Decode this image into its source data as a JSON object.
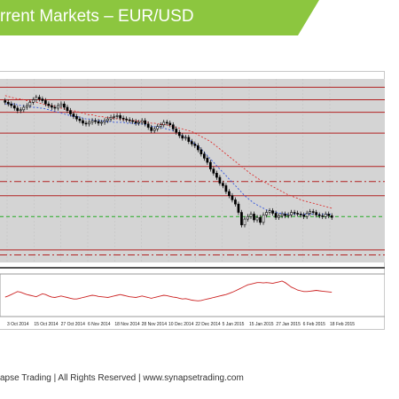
{
  "header": {
    "title": "rrent Markets – EUR/USD",
    "banner_color": "#8cc63f"
  },
  "footer": {
    "text": "apse Trading | All Rights Reserved | www.synapsetrading.com"
  },
  "colors": {
    "plot_bg": "#d4d4d4",
    "candle_body": "#ffffff",
    "candle_body_down": "#000000",
    "candle_wick": "#000000",
    "level_line": "#b22222",
    "ma_fast": "#3355dd",
    "ma_slow": "#dd3333",
    "dashed_green": "#22aa22",
    "indicator_line": "#cc2222"
  },
  "chart_data": {
    "type": "candlestick",
    "title": "",
    "xlabel": "",
    "ylabel": "",
    "grid": true,
    "x_tick_labels": [
      "3 Oct 2014",
      "15 Oct 2014",
      "27 Oct 2014",
      "6 Nov 2014",
      "18 Nov 2014",
      "28 Nov 2014",
      "10 Dec 2014",
      "22 Dec 2014",
      "5 Jan 2015",
      "15 Jan 2015",
      "27 Jan 2015",
      "6 Feb 2015",
      "18 Feb 2015"
    ],
    "horizontal_levels": [
      {
        "value": 1.29,
        "style": "solid"
      },
      {
        "value": 1.275,
        "style": "solid"
      },
      {
        "value": 1.26,
        "style": "solid"
      },
      {
        "value": 1.235,
        "style": "solid"
      },
      {
        "value": 1.195,
        "style": "solid"
      },
      {
        "value": 1.177,
        "style": "dashdot"
      },
      {
        "value": 1.16,
        "style": "solid"
      },
      {
        "value": 1.135,
        "style": "dashed-green"
      },
      {
        "value": 1.095,
        "style": "solid"
      },
      {
        "value": 1.089,
        "style": "dashdot"
      }
    ],
    "ylim": [
      1.08,
      1.3
    ],
    "closes": [
      1.272,
      1.27,
      1.268,
      1.265,
      1.262,
      1.263,
      1.266,
      1.268,
      1.272,
      1.275,
      1.278,
      1.276,
      1.274,
      1.27,
      1.268,
      1.266,
      1.265,
      1.268,
      1.27,
      1.266,
      1.262,
      1.258,
      1.255,
      1.252,
      1.25,
      1.247,
      1.246,
      1.248,
      1.25,
      1.249,
      1.247,
      1.248,
      1.25,
      1.252,
      1.254,
      1.255,
      1.256,
      1.253,
      1.252,
      1.251,
      1.25,
      1.249,
      1.247,
      1.248,
      1.25,
      1.246,
      1.242,
      1.238,
      1.24,
      1.243,
      1.245,
      1.248,
      1.247,
      1.245,
      1.24,
      1.236,
      1.232,
      1.229,
      1.23,
      1.225,
      1.222,
      1.22,
      1.215,
      1.21,
      1.205,
      1.2,
      1.192,
      1.187,
      1.182,
      1.175,
      1.172,
      1.165,
      1.16,
      1.155,
      1.15,
      1.14,
      1.125,
      1.132,
      1.135,
      1.138,
      1.131,
      1.134,
      1.128,
      1.137,
      1.14,
      1.142,
      1.139,
      1.134,
      1.136,
      1.138,
      1.136,
      1.137,
      1.14,
      1.139,
      1.138,
      1.137,
      1.135,
      1.139,
      1.141,
      1.14,
      1.137,
      1.136,
      1.135,
      1.138,
      1.136,
      1.134
    ],
    "ma_fast": [
      1.27,
      1.27,
      1.27,
      1.27,
      1.269,
      1.268,
      1.268,
      1.267,
      1.267,
      1.266,
      1.266,
      1.265,
      1.265,
      1.264,
      1.263,
      1.262,
      1.261,
      1.26,
      1.259,
      1.258,
      1.257,
      1.256,
      1.255,
      1.255,
      1.254,
      1.253,
      1.252,
      1.252,
      1.251,
      1.25,
      1.25,
      1.25,
      1.249,
      1.249,
      1.249,
      1.248,
      1.248,
      1.248,
      1.248,
      1.247,
      1.247,
      1.247,
      1.246,
      1.246,
      1.246,
      1.245,
      1.244,
      1.243,
      1.243,
      1.242,
      1.242,
      1.241,
      1.24,
      1.239,
      1.238,
      1.236,
      1.234,
      1.232,
      1.23,
      1.228,
      1.225,
      1.222,
      1.219,
      1.216,
      1.212,
      1.208,
      1.204,
      1.2,
      1.196,
      1.192,
      1.188,
      1.184,
      1.18,
      1.176,
      1.172,
      1.168,
      1.164,
      1.16,
      1.157,
      1.154,
      1.151,
      1.149,
      1.147,
      1.145,
      1.143,
      1.142,
      1.141,
      1.14,
      1.139,
      1.139,
      1.138,
      1.138,
      1.138,
      1.138,
      1.138,
      1.138,
      1.138,
      1.138,
      1.138,
      1.138,
      1.138,
      1.138,
      1.138,
      1.138,
      1.138,
      1.138
    ],
    "ma_slow": [
      1.28,
      1.279,
      1.278,
      1.277,
      1.276,
      1.276,
      1.275,
      1.274,
      1.273,
      1.272,
      1.272,
      1.271,
      1.27,
      1.269,
      1.268,
      1.268,
      1.267,
      1.266,
      1.265,
      1.264,
      1.263,
      1.262,
      1.262,
      1.261,
      1.26,
      1.259,
      1.258,
      1.257,
      1.257,
      1.256,
      1.255,
      1.255,
      1.254,
      1.254,
      1.253,
      1.253,
      1.252,
      1.252,
      1.251,
      1.251,
      1.25,
      1.25,
      1.25,
      1.249,
      1.249,
      1.248,
      1.248,
      1.247,
      1.247,
      1.246,
      1.246,
      1.245,
      1.245,
      1.244,
      1.243,
      1.242,
      1.241,
      1.24,
      1.239,
      1.238,
      1.237,
      1.235,
      1.233,
      1.231,
      1.229,
      1.227,
      1.225,
      1.222,
      1.219,
      1.216,
      1.213,
      1.21,
      1.207,
      1.204,
      1.201,
      1.198,
      1.195,
      1.192,
      1.189,
      1.186,
      1.184,
      1.181,
      1.179,
      1.177,
      1.175,
      1.173,
      1.171,
      1.169,
      1.167,
      1.165,
      1.163,
      1.161,
      1.16,
      1.158,
      1.157,
      1.155,
      1.154,
      1.153,
      1.152,
      1.151,
      1.15,
      1.149,
      1.148,
      1.147,
      1.146,
      1.145
    ],
    "indicator": {
      "ylim": [
        0,
        100
      ],
      "values": [
        45,
        48,
        52,
        56,
        60,
        58,
        55,
        52,
        50,
        48,
        46,
        50,
        54,
        52,
        48,
        45,
        44,
        46,
        48,
        46,
        44,
        42,
        40,
        40,
        42,
        44,
        46,
        48,
        50,
        49,
        47,
        46,
        45,
        44,
        46,
        48,
        50,
        52,
        50,
        48,
        46,
        45,
        44,
        46,
        48,
        46,
        44,
        42,
        44,
        46,
        48,
        50,
        49,
        47,
        45,
        44,
        42,
        40,
        41,
        39,
        37,
        36,
        35,
        36,
        38,
        40,
        42,
        44,
        46,
        48,
        50,
        52,
        55,
        58,
        62,
        66,
        70,
        74,
        78,
        80,
        82,
        84,
        84,
        83,
        84,
        83,
        82,
        84,
        86,
        88,
        84,
        78,
        72,
        68,
        64,
        62,
        60,
        60,
        61,
        62,
        63,
        62,
        61,
        60,
        59,
        58
      ]
    }
  }
}
